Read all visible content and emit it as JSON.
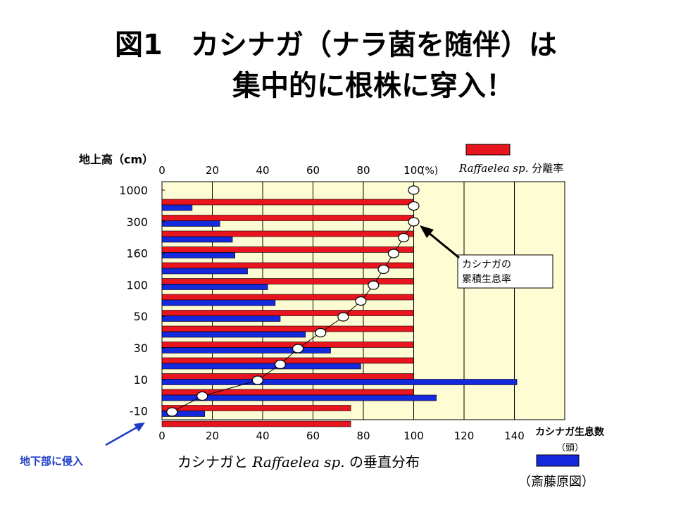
{
  "title": {
    "line1": "図1　カシナガ（ナラ菌を随伴）は",
    "line2": "集中的に根株に穿入！"
  },
  "chart_data": {
    "type": "bar",
    "orientation": "horizontal",
    "caption_part1": "カシナガと",
    "caption_species": "Raffaelea sp.",
    "caption_part2": "の垂直分布",
    "y_axis_label": "地上高（cm）",
    "y_tick_labels": [
      "1000",
      "300",
      "160",
      "100",
      "50",
      "30",
      "10",
      "-10"
    ],
    "top_axis": {
      "ticks": [
        "0",
        "20",
        "40",
        "60",
        "80",
        "100"
      ],
      "unit": "(%)",
      "range": [
        0,
        160
      ]
    },
    "bottom_axis": {
      "ticks": [
        "0",
        "20",
        "40",
        "60",
        "80",
        "100",
        "120",
        "140"
      ],
      "label": "カシナガ生息数",
      "unit": "（頭）",
      "range": [
        0,
        160
      ]
    },
    "series": [
      {
        "name_species": "Raffaelea sp.",
        "name_suffix": "分離率",
        "color": "#e8141e",
        "axis": "top",
        "values": [
          100,
          100,
          100,
          100,
          100,
          100,
          100,
          100,
          100,
          100,
          100,
          100,
          100,
          75,
          75
        ]
      },
      {
        "name": "カシナガ生息数",
        "color": "#1428dc",
        "axis": "bottom",
        "values": [
          12,
          23,
          28,
          29,
          34,
          42,
          45,
          47,
          57,
          67,
          79,
          141,
          109,
          17
        ]
      },
      {
        "name": "カシナガの累積生息率",
        "type": "line",
        "axis": "top",
        "values": [
          100,
          100,
          100,
          96,
          92,
          88,
          84,
          79,
          72,
          63,
          54,
          47,
          38,
          16,
          4
        ]
      }
    ],
    "annotations": {
      "callout_line1": "カシナガの",
      "callout_line2": "累積生息率",
      "underground": "地下部に侵入",
      "source": "（斎藤原図）"
    },
    "colors": {
      "plot_background": "#fdfcd2",
      "arrow_blue": "#1e3cc8"
    }
  }
}
